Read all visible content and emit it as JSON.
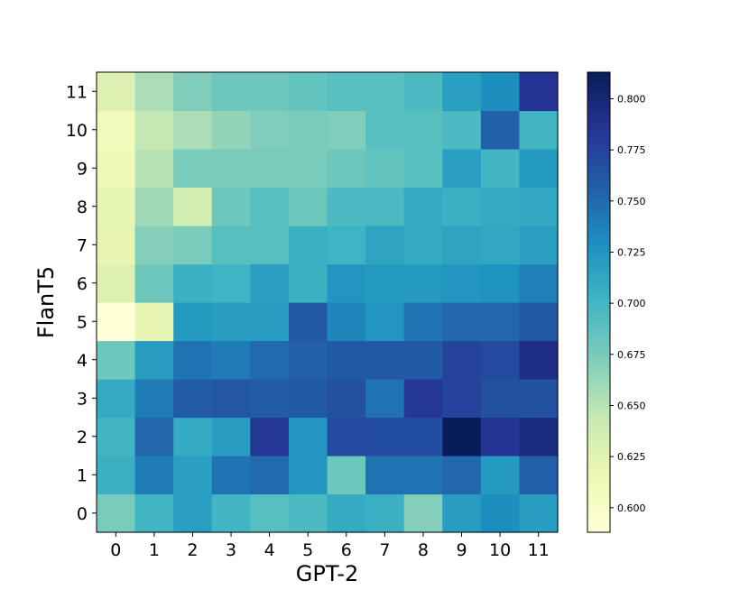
{
  "chart_data": {
    "type": "heatmap",
    "xlabel": "GPT-2",
    "ylabel": "FlanT5",
    "x_ticks": [
      "0",
      "1",
      "2",
      "3",
      "4",
      "5",
      "6",
      "7",
      "8",
      "9",
      "10",
      "11"
    ],
    "y_ticks": [
      "0",
      "1",
      "2",
      "3",
      "4",
      "5",
      "6",
      "7",
      "8",
      "9",
      "10",
      "11"
    ],
    "colormap": "YlGnBu",
    "vmin": 0.588,
    "vmax": 0.813,
    "colorbar_ticks": [
      "0.600",
      "0.625",
      "0.650",
      "0.675",
      "0.700",
      "0.725",
      "0.750",
      "0.775",
      "0.800"
    ],
    "row_order": "values[i] is FlanT5 layer i (0 at bottom), columns are GPT-2 layers 0..11",
    "values": [
      [
        0.675,
        0.7,
        0.718,
        0.7,
        0.69,
        0.695,
        0.71,
        0.705,
        0.67,
        0.72,
        0.73,
        0.72
      ],
      [
        0.705,
        0.74,
        0.718,
        0.745,
        0.75,
        0.725,
        0.68,
        0.745,
        0.745,
        0.752,
        0.722,
        0.755
      ],
      [
        0.7,
        0.752,
        0.71,
        0.72,
        0.783,
        0.725,
        0.77,
        0.768,
        0.768,
        0.813,
        0.785,
        0.795
      ],
      [
        0.71,
        0.74,
        0.758,
        0.762,
        0.758,
        0.76,
        0.766,
        0.745,
        0.783,
        0.775,
        0.766,
        0.766
      ],
      [
        0.68,
        0.72,
        0.745,
        0.74,
        0.75,
        0.755,
        0.76,
        0.76,
        0.76,
        0.775,
        0.77,
        0.792
      ],
      [
        0.59,
        0.62,
        0.722,
        0.72,
        0.72,
        0.76,
        0.735,
        0.725,
        0.745,
        0.752,
        0.752,
        0.76
      ],
      [
        0.628,
        0.68,
        0.705,
        0.702,
        0.718,
        0.705,
        0.725,
        0.722,
        0.722,
        0.725,
        0.728,
        0.738
      ],
      [
        0.62,
        0.67,
        0.675,
        0.69,
        0.69,
        0.705,
        0.702,
        0.715,
        0.71,
        0.715,
        0.712,
        0.718
      ],
      [
        0.622,
        0.66,
        0.635,
        0.68,
        0.69,
        0.68,
        0.695,
        0.695,
        0.71,
        0.705,
        0.71,
        0.712
      ],
      [
        0.612,
        0.65,
        0.675,
        0.675,
        0.675,
        0.675,
        0.68,
        0.685,
        0.69,
        0.718,
        0.7,
        0.722
      ],
      [
        0.61,
        0.645,
        0.655,
        0.665,
        0.672,
        0.675,
        0.672,
        0.69,
        0.69,
        0.695,
        0.755,
        0.7
      ],
      [
        0.628,
        0.655,
        0.672,
        0.68,
        0.68,
        0.685,
        0.69,
        0.69,
        0.695,
        0.718,
        0.73,
        0.785
      ]
    ],
    "grid": false,
    "colorbar_position": "right"
  }
}
